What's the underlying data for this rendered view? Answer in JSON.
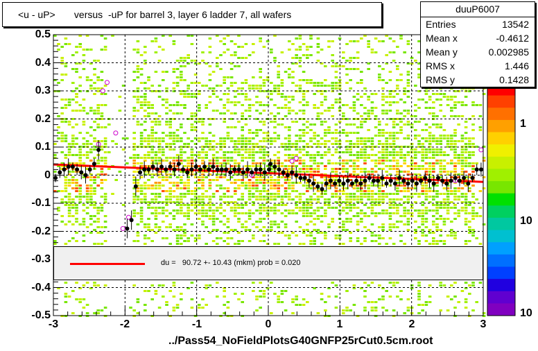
{
  "title": "<u - uP>       versus  -uP for barrel 3, layer 6 ladder 7, all wafers",
  "file_label": "../Pass54_NoFieldPlotsG40GNFP25rCut0.5cm.root",
  "stats": {
    "name": "duuP6007",
    "rows": [
      {
        "key": "Entries",
        "value": "13542"
      },
      {
        "key": "Mean x",
        "value": "-0.4612"
      },
      {
        "key": "Mean y",
        "value": "0.002985"
      },
      {
        "key": "RMS x",
        "value": "1.446"
      },
      {
        "key": "RMS y",
        "value": "0.1428"
      }
    ]
  },
  "fit_legend": "du =   90.72 +- 10.43 (mkm) prob = 0.020",
  "colors": {
    "fit_line": "#ff0000",
    "profile_marker": "#000000",
    "open_marker": "#cc00cc"
  },
  "chart_data": {
    "type": "heatmap",
    "title": "<u - uP>       versus  -uP for barrel 3, layer 6 ladder 7, all wafers",
    "xlim": [
      -3,
      3
    ],
    "ylim": [
      -0.5,
      0.5
    ],
    "x_ticks": [
      "-3",
      "-2",
      "-1",
      "0",
      "1",
      "2",
      "3"
    ],
    "y_ticks": [
      "0.5",
      "0.4",
      "0.3",
      "0.2",
      "0.1",
      "0",
      "-0.1",
      "-0.2",
      "-0.3",
      "-0.4",
      "-0.5"
    ],
    "z_ticks": [
      "1",
      "10",
      "10"
    ],
    "grid": true,
    "fit": {
      "x": [
        -3,
        3
      ],
      "y": [
        0.038,
        -0.024
      ]
    },
    "profile": [
      {
        "x": -2.97,
        "y": -0.01
      },
      {
        "x": -2.91,
        "y": 0.01
      },
      {
        "x": -2.85,
        "y": 0.02
      },
      {
        "x": -2.79,
        "y": 0.03
      },
      {
        "x": -2.73,
        "y": 0.03
      },
      {
        "x": -2.67,
        "y": 0.02
      },
      {
        "x": -2.61,
        "y": 0.01
      },
      {
        "x": -2.55,
        "y": 0.0
      },
      {
        "x": -2.49,
        "y": 0.02
      },
      {
        "x": -2.43,
        "y": 0.04
      },
      {
        "x": -2.37,
        "y": 0.09
      },
      {
        "x": -1.97,
        "y": -0.19
      },
      {
        "x": -1.91,
        "y": -0.16
      },
      {
        "x": -1.85,
        "y": -0.04
      },
      {
        "x": -1.79,
        "y": 0.01
      },
      {
        "x": -1.73,
        "y": 0.02
      },
      {
        "x": -1.67,
        "y": 0.02
      },
      {
        "x": -1.61,
        "y": 0.03
      },
      {
        "x": -1.55,
        "y": 0.02
      },
      {
        "x": -1.49,
        "y": 0.03
      },
      {
        "x": -1.43,
        "y": 0.02
      },
      {
        "x": -1.37,
        "y": 0.03
      },
      {
        "x": -1.31,
        "y": 0.02
      },
      {
        "x": -1.25,
        "y": 0.04
      },
      {
        "x": -1.19,
        "y": 0.02
      },
      {
        "x": -1.13,
        "y": 0.01
      },
      {
        "x": -1.07,
        "y": 0.02
      },
      {
        "x": -1.01,
        "y": 0.03
      },
      {
        "x": -0.95,
        "y": 0.02
      },
      {
        "x": -0.89,
        "y": 0.03
      },
      {
        "x": -0.83,
        "y": 0.02
      },
      {
        "x": -0.77,
        "y": 0.03
      },
      {
        "x": -0.71,
        "y": 0.02
      },
      {
        "x": -0.65,
        "y": 0.02
      },
      {
        "x": -0.59,
        "y": 0.02
      },
      {
        "x": -0.53,
        "y": 0.01
      },
      {
        "x": -0.47,
        "y": 0.02
      },
      {
        "x": -0.41,
        "y": 0.02
      },
      {
        "x": -0.35,
        "y": 0.01
      },
      {
        "x": -0.29,
        "y": 0.02
      },
      {
        "x": -0.23,
        "y": 0.01
      },
      {
        "x": -0.17,
        "y": 0.02
      },
      {
        "x": -0.11,
        "y": 0.02
      },
      {
        "x": -0.05,
        "y": 0.01
      },
      {
        "x": 0.01,
        "y": 0.02
      },
      {
        "x": 0.03,
        "y": 0.04
      },
      {
        "x": 0.09,
        "y": 0.03
      },
      {
        "x": 0.15,
        "y": 0.02
      },
      {
        "x": 0.21,
        "y": 0.01
      },
      {
        "x": 0.27,
        "y": 0.0
      },
      {
        "x": 0.33,
        "y": 0.01
      },
      {
        "x": 0.39,
        "y": 0.0
      },
      {
        "x": 0.45,
        "y": -0.01
      },
      {
        "x": 0.51,
        "y": -0.01
      },
      {
        "x": 0.57,
        "y": -0.02
      },
      {
        "x": 0.63,
        "y": -0.03
      },
      {
        "x": 0.69,
        "y": -0.04
      },
      {
        "x": 0.75,
        "y": -0.05
      },
      {
        "x": 0.81,
        "y": -0.03
      },
      {
        "x": 0.87,
        "y": -0.02
      },
      {
        "x": 0.93,
        "y": -0.03
      },
      {
        "x": 0.99,
        "y": -0.02
      },
      {
        "x": 1.05,
        "y": -0.03
      },
      {
        "x": 1.11,
        "y": -0.02
      },
      {
        "x": 1.17,
        "y": -0.03
      },
      {
        "x": 1.23,
        "y": -0.02
      },
      {
        "x": 1.29,
        "y": -0.03
      },
      {
        "x": 1.35,
        "y": -0.02
      },
      {
        "x": 1.41,
        "y": -0.01
      },
      {
        "x": 1.47,
        "y": -0.02
      },
      {
        "x": 1.53,
        "y": -0.02
      },
      {
        "x": 1.59,
        "y": -0.01
      },
      {
        "x": 1.65,
        "y": -0.03
      },
      {
        "x": 1.71,
        "y": -0.02
      },
      {
        "x": 1.77,
        "y": -0.03
      },
      {
        "x": 1.83,
        "y": -0.01
      },
      {
        "x": 1.89,
        "y": -0.02
      },
      {
        "x": 1.95,
        "y": -0.03
      },
      {
        "x": 2.01,
        "y": -0.02
      },
      {
        "x": 2.07,
        "y": -0.03
      },
      {
        "x": 2.13,
        "y": -0.02
      },
      {
        "x": 2.19,
        "y": -0.01
      },
      {
        "x": 2.25,
        "y": -0.02
      },
      {
        "x": 2.31,
        "y": -0.03
      },
      {
        "x": 2.37,
        "y": -0.01
      },
      {
        "x": 2.43,
        "y": -0.02
      },
      {
        "x": 2.49,
        "y": -0.03
      },
      {
        "x": 2.55,
        "y": -0.02
      },
      {
        "x": 2.61,
        "y": -0.01
      },
      {
        "x": 2.67,
        "y": -0.02
      },
      {
        "x": 2.73,
        "y": -0.01
      },
      {
        "x": 2.79,
        "y": -0.03
      },
      {
        "x": 2.85,
        "y": -0.01
      },
      {
        "x": 2.91,
        "y": 0.02
      },
      {
        "x": 2.97,
        "y": 0.02
      }
    ],
    "open_markers": [
      {
        "x": -2.37,
        "y": 0.11
      },
      {
        "x": -2.31,
        "y": 0.3
      },
      {
        "x": -2.25,
        "y": 0.33
      },
      {
        "x": -2.13,
        "y": 0.15
      },
      {
        "x": -2.03,
        "y": -0.19
      },
      {
        "x": -1.95,
        "y": -0.15
      },
      {
        "x": -0.23,
        "y": 0.0
      },
      {
        "x": 0.33,
        "y": 0.05
      },
      {
        "x": 0.39,
        "y": 0.06
      },
      {
        "x": 2.61,
        "y": -0.02
      },
      {
        "x": 2.97,
        "y": 0.09
      }
    ]
  }
}
